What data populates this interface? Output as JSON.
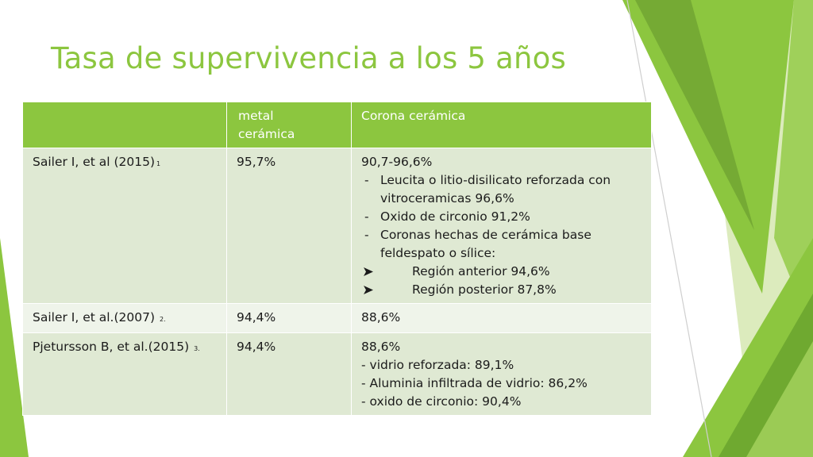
{
  "slide": {
    "title": "Tasa de supervivencia a los 5 años",
    "colors": {
      "accent": "#8cc63f",
      "row_dark": "#dfe9d3",
      "row_light": "#eff4ea"
    }
  },
  "table": {
    "headers": [
      "",
      "metal cerámica",
      "Corona cerámica"
    ],
    "rows": [
      {
        "study": "Sailer I, et al (2015)",
        "ref": "1",
        "metal": "95,7%",
        "corona": {
          "lead": "90,7-96,6%",
          "items": [
            "Leucita o litio-disilicato reforzada con vitroceramicas 96,6%",
            "Oxido de circonio 91,2%",
            "Coronas hechas de cerámica base feldespato o sílice:"
          ],
          "arrow_icon": "arrow-bullet-icon",
          "subitems": [
            "Región anterior 94,6%",
            "Región posterior 87,8%"
          ]
        }
      },
      {
        "study": "Sailer I, et al.(2007)",
        "ref": "2.",
        "metal": "94,4%",
        "corona": {
          "lead": "88,6%"
        }
      },
      {
        "study": "Pjetursson B, et al.(2015)",
        "ref": "3.",
        "metal": "94,4%",
        "corona": {
          "lead": "88,6%",
          "lines": [
            "- vidrio reforzada: 89,1%",
            "- Aluminia infiltrada de vidrio: 86,2%",
            "- oxido de circonio: 90,4%"
          ]
        }
      }
    ]
  }
}
